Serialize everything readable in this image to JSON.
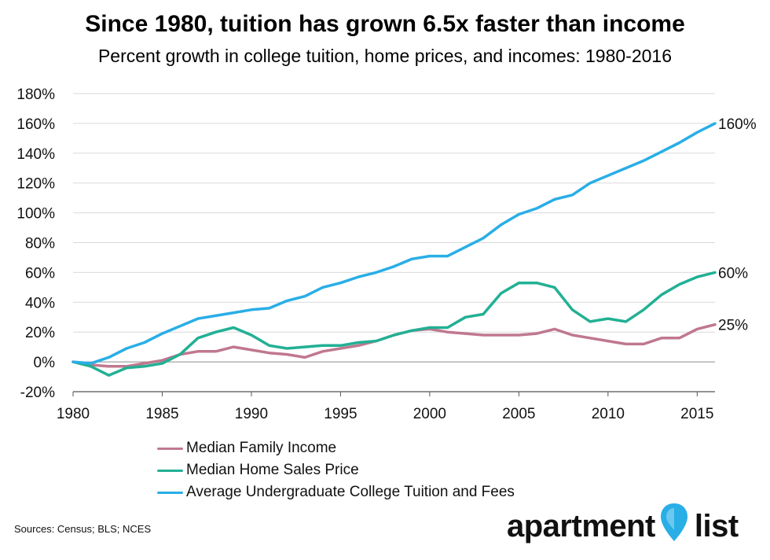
{
  "header": {
    "title": "Since 1980, tuition has grown 6.5x faster than income",
    "subtitle": "Percent growth in college tuition, home prices, and incomes: 1980-2016"
  },
  "footer": {
    "source": "Sources: Census; BLS; NCES",
    "logo_left": "apartment",
    "logo_right": "list",
    "logo_pin": "map-pin-logo"
  },
  "chart_data": {
    "type": "line",
    "title": "Since 1980, tuition has grown 6.5x faster than income",
    "subtitle": "Percent growth in college tuition, home prices, and incomes: 1980-2016",
    "xlabel": "",
    "ylabel": "",
    "xlim": [
      1980,
      2016
    ],
    "ylim": [
      -20,
      180
    ],
    "x_ticks": [
      1980,
      1985,
      1990,
      1995,
      2000,
      2005,
      2010,
      2015
    ],
    "x_tick_labels": [
      "1980",
      "1985",
      "1990",
      "1995",
      "2000",
      "2005",
      "2010",
      "2015"
    ],
    "y_ticks": [
      -20,
      0,
      20,
      40,
      60,
      80,
      100,
      120,
      140,
      160,
      180
    ],
    "y_tick_labels": [
      "-20%",
      "0%",
      "20%",
      "40%",
      "60%",
      "80%",
      "100%",
      "120%",
      "140%",
      "160%",
      "180%"
    ],
    "grid": "horizontal",
    "legend_position": "bottom-left",
    "x": [
      1980,
      1981,
      1982,
      1983,
      1984,
      1985,
      1986,
      1987,
      1988,
      1989,
      1990,
      1991,
      1992,
      1993,
      1994,
      1995,
      1996,
      1997,
      1998,
      1999,
      2000,
      2001,
      2002,
      2003,
      2004,
      2005,
      2006,
      2007,
      2008,
      2009,
      2010,
      2011,
      2012,
      2013,
      2014,
      2015,
      2016
    ],
    "series": [
      {
        "name": "Median Family Income",
        "color": "#c0788e",
        "end_label": "25%",
        "values": [
          0,
          -2,
          -3,
          -3,
          -1,
          1,
          5,
          7,
          7,
          10,
          8,
          6,
          5,
          3,
          7,
          9,
          11,
          14,
          18,
          21,
          22,
          20,
          19,
          18,
          18,
          18,
          19,
          22,
          18,
          16,
          14,
          12,
          12,
          16,
          16,
          22,
          25
        ]
      },
      {
        "name": "Median Home Sales Price",
        "color": "#22b094",
        "end_label": "60%",
        "values": [
          0,
          -3,
          -9,
          -4,
          -3,
          -1,
          5,
          16,
          20,
          23,
          18,
          11,
          9,
          10,
          11,
          11,
          13,
          14,
          18,
          21,
          23,
          23,
          30,
          32,
          46,
          53,
          53,
          50,
          35,
          27,
          29,
          27,
          35,
          45,
          52,
          57,
          60
        ]
      },
      {
        "name": "Average Undergraduate College Tuition and Fees",
        "color": "#29aee6",
        "end_label": "160%",
        "values": [
          0,
          -1,
          3,
          9,
          13,
          19,
          24,
          29,
          31,
          33,
          35,
          36,
          41,
          44,
          50,
          53,
          57,
          60,
          64,
          69,
          71,
          71,
          77,
          83,
          92,
          99,
          103,
          109,
          112,
          120,
          125,
          130,
          135,
          141,
          147,
          154,
          160
        ]
      }
    ]
  }
}
